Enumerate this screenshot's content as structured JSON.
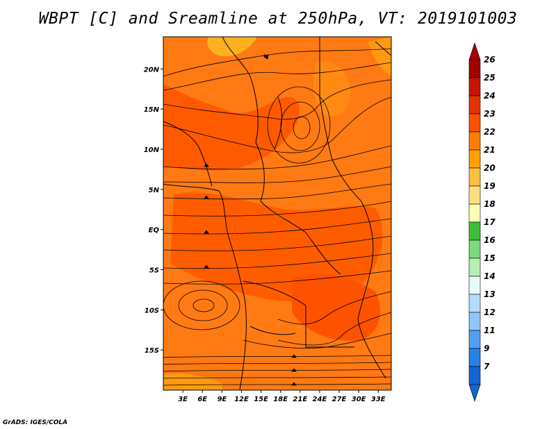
{
  "title": "WBPT [C] and Sreamline at 250hPa, VT: 2019101003",
  "credit": "GrADS: IGES/COLA",
  "map": {
    "lat_range": [
      -20,
      24
    ],
    "lon_range": [
      0,
      35
    ],
    "lat_ticks": [
      {
        "value": 20,
        "label": "20N"
      },
      {
        "value": 15,
        "label": "15N"
      },
      {
        "value": 10,
        "label": "10N"
      },
      {
        "value": 5,
        "label": "5N"
      },
      {
        "value": 0,
        "label": "EQ"
      },
      {
        "value": -5,
        "label": "5S"
      },
      {
        "value": -10,
        "label": "10S"
      },
      {
        "value": -15,
        "label": "15S"
      }
    ],
    "lon_ticks": [
      {
        "value": 3,
        "label": "3E"
      },
      {
        "value": 6,
        "label": "6E"
      },
      {
        "value": 9,
        "label": "9E"
      },
      {
        "value": 12,
        "label": "12E"
      },
      {
        "value": 15,
        "label": "15E"
      },
      {
        "value": 18,
        "label": "18E"
      },
      {
        "value": 21,
        "label": "21E"
      },
      {
        "value": 24,
        "label": "24E"
      },
      {
        "value": 27,
        "label": "27E"
      },
      {
        "value": 30,
        "label": "30E"
      },
      {
        "value": 33,
        "label": "33E"
      }
    ],
    "base_fill_color": "#ff7a12"
  },
  "colorbar": {
    "levels": [
      "26",
      "25",
      "24",
      "23",
      "22",
      "21",
      "20",
      "19",
      "18",
      "17",
      "16",
      "15",
      "14",
      "13",
      "12",
      "11",
      "9",
      "7"
    ],
    "colors": [
      "#a50000",
      "#c81400",
      "#e63200",
      "#ff5000",
      "#ff7d00",
      "#ffa000",
      "#ffc040",
      "#ffe080",
      "#ffffb0",
      "#3cbe3c",
      "#78dc78",
      "#b4f0b4",
      "#e6fafa",
      "#b4dcff",
      "#8cc8ff",
      "#50a0f0",
      "#2882e6",
      "#1464d2"
    ],
    "top_cap_color": "#a50000",
    "bottom_cap_color": "#1464d2"
  }
}
